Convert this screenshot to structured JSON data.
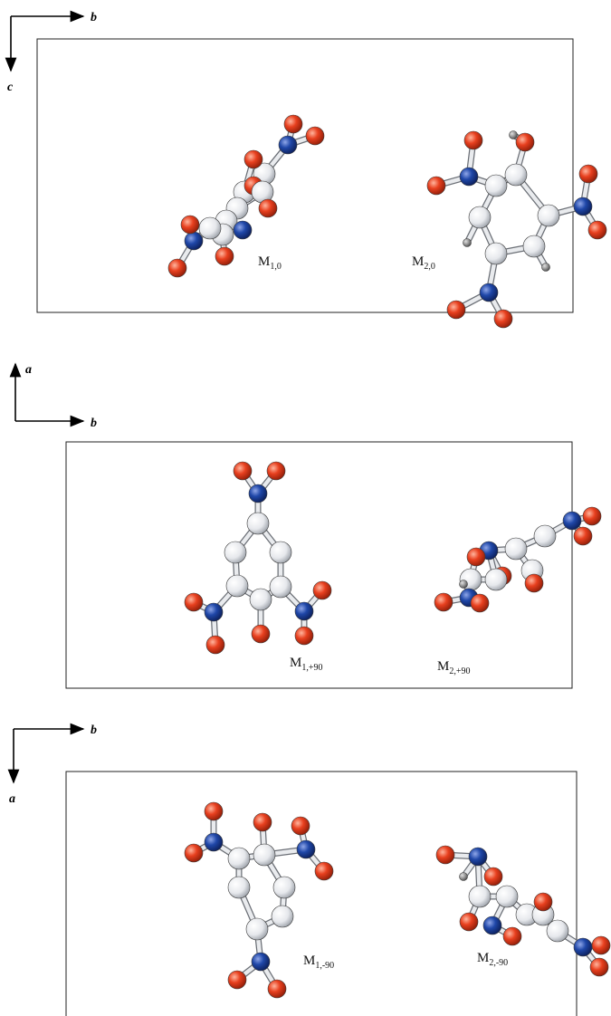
{
  "colors": {
    "oxygen": "#e8401f",
    "nitrogen": "#1f47a8",
    "carbon": "#e6e8ec",
    "hydrogen": "#8c8c8c",
    "frame": "#222222"
  },
  "panels": [
    {
      "axes": {
        "horizontal": "b",
        "vertical": "c"
      },
      "labels": [
        {
          "main": "M",
          "sub": "1,0"
        },
        {
          "main": "M",
          "sub": "2,0"
        }
      ]
    },
    {
      "axes": {
        "horizontal": "b",
        "vertical": "a"
      },
      "labels": [
        {
          "main": "M",
          "sub": "1,+90"
        },
        {
          "main": "M",
          "sub": "2,+90"
        }
      ]
    },
    {
      "axes": {
        "horizontal": "b",
        "vertical": "a"
      },
      "labels": [
        {
          "main": "M",
          "sub": "1,-90"
        },
        {
          "main": "M",
          "sub": "2,-90"
        }
      ]
    }
  ]
}
